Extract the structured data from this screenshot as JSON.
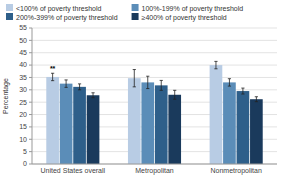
{
  "chart_data": {
    "type": "bar",
    "categories": [
      "United States overall",
      "Metropolitan",
      "Nonmetropolitan"
    ],
    "series": [
      {
        "name": "<100% of poverty threshold",
        "color": "#b8cce4",
        "values": [
          35.2,
          34.7,
          40.0
        ],
        "errors": [
          1.5,
          3.5,
          1.5
        ]
      },
      {
        "name": "100%-199% of poverty threshold",
        "color": "#5b8db8",
        "values": [
          32.5,
          33.0,
          33.0
        ],
        "errors": [
          1.5,
          2.5,
          1.5
        ]
      },
      {
        "name": "200%-399% of poverty threshold",
        "color": "#2e5f8a",
        "values": [
          31.2,
          31.8,
          29.5
        ],
        "errors": [
          1.2,
          2.0,
          1.2
        ]
      },
      {
        "name": "≥400% of poverty threshold",
        "color": "#1a3a5c",
        "values": [
          27.8,
          28.0,
          26.2
        ],
        "errors": [
          1.0,
          1.8,
          1.0
        ]
      }
    ],
    "y_label": "Percentage",
    "ylim": [
      0,
      55
    ],
    "yticks": [
      0,
      5,
      10,
      15,
      20,
      25,
      30,
      35,
      40,
      45,
      50,
      55
    ],
    "grid": true,
    "legend": "top",
    "annotations": [
      {
        "text": "**",
        "category": "United States overall",
        "series": "<100% of poverty threshold"
      }
    ]
  }
}
